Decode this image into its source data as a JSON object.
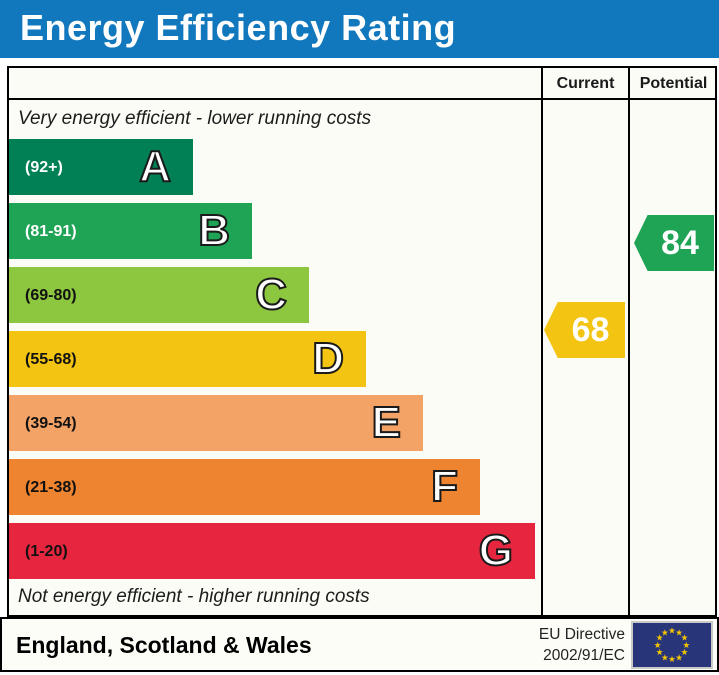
{
  "title": "Energy Efficiency Rating",
  "header": {
    "current_label": "Current",
    "potential_label": "Potential"
  },
  "chart_data": {
    "type": "bar",
    "title": "Energy Efficiency Rating",
    "top_note": "Very energy efficient - lower running costs",
    "bottom_note": "Not energy efficient - higher running costs",
    "bands": [
      {
        "letter": "A",
        "range": "(92+)",
        "color": "#008054",
        "label_color": "#ffffff"
      },
      {
        "letter": "B",
        "range": "(81-91)",
        "color": "#1fa355",
        "label_color": "#ffffff"
      },
      {
        "letter": "C",
        "range": "(69-80)",
        "color": "#8dc63f",
        "label_color": "#111111"
      },
      {
        "letter": "D",
        "range": "(55-68)",
        "color": "#f3c412",
        "label_color": "#111111"
      },
      {
        "letter": "E",
        "range": "(39-54)",
        "color": "#f3a366",
        "label_color": "#111111"
      },
      {
        "letter": "F",
        "range": "(21-38)",
        "color": "#ee8430",
        "label_color": "#111111"
      },
      {
        "letter": "G",
        "range": "(1-20)",
        "color": "#e5263e",
        "label_color": "#111111"
      }
    ],
    "current": {
      "value": "68",
      "band": "D",
      "color": "#f3c412"
    },
    "potential": {
      "value": "84",
      "band": "B",
      "color": "#1fa355"
    }
  },
  "footer": {
    "region": "England, Scotland & Wales",
    "directive_line1": "EU Directive",
    "directive_line2": "2002/91/EC",
    "eu_flag": {
      "background": "#293579",
      "star_color": "#f2c500"
    }
  },
  "colors": {
    "title_bar": "#1278bd",
    "panel_bg": "#fcfcf6",
    "border": "#000000"
  }
}
